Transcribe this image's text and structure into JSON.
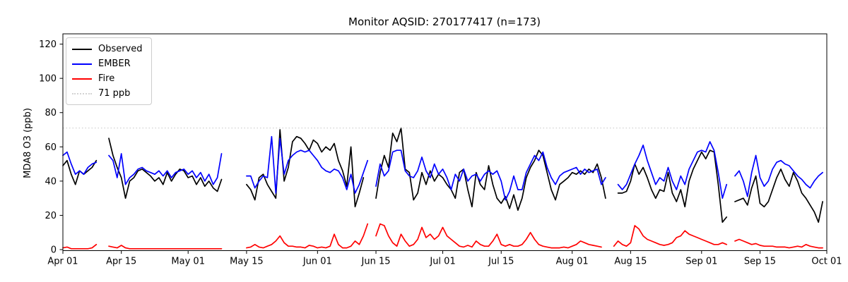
{
  "header": {
    "title": "Monitor AQSID: 270177417 (n=173)"
  },
  "legend": {
    "entries": [
      {
        "label": "Observed",
        "color": "#000000",
        "style": "solid"
      },
      {
        "label": "EMBER",
        "color": "#0000ff",
        "style": "solid"
      },
      {
        "label": "Fire",
        "color": "#ff0000",
        "style": "solid"
      },
      {
        "label": "71 ppb",
        "color": "#d3d3d3",
        "style": "dotted"
      }
    ]
  },
  "chart_data": {
    "type": "line",
    "title": "Monitor AQSID: 270177417 (n=173)",
    "xlabel": "",
    "ylabel": "MDA8 O3 (ppb)",
    "x_unit": "days since Apr 01",
    "x_range_days": 183,
    "ylim": [
      -0.6,
      126
    ],
    "grid": false,
    "legend_position": "upper left",
    "y_ticks": [
      0,
      20,
      40,
      60,
      80,
      100,
      120
    ],
    "x_ticks": [
      {
        "day": 0,
        "label": "Apr 01"
      },
      {
        "day": 14,
        "label": "Apr 15"
      },
      {
        "day": 30,
        "label": "May 01"
      },
      {
        "day": 44,
        "label": "May 15"
      },
      {
        "day": 61,
        "label": "Jun 01"
      },
      {
        "day": 75,
        "label": "Jun 15"
      },
      {
        "day": 91,
        "label": "Jul 01"
      },
      {
        "day": 105,
        "label": "Jul 15"
      },
      {
        "day": 122,
        "label": "Aug 01"
      },
      {
        "day": 136,
        "label": "Aug 15"
      },
      {
        "day": 153,
        "label": "Sep 01"
      },
      {
        "day": 167,
        "label": "Sep 15"
      },
      {
        "day": 183,
        "label": "Oct 01"
      }
    ],
    "threshold": {
      "value": 71,
      "label": "71 ppb",
      "color": "#d3d3d3",
      "style": "dotted"
    },
    "series": [
      {
        "name": "Observed",
        "color": "#000000",
        "style": "solid",
        "values": [
          49,
          52,
          44,
          38,
          46,
          44,
          46,
          48,
          52,
          null,
          null,
          65,
          55,
          48,
          42,
          30,
          40,
          42,
          46,
          47,
          45,
          43,
          40,
          42,
          38,
          45,
          40,
          44,
          47,
          46,
          42,
          43,
          38,
          42,
          37,
          40,
          36,
          34,
          41,
          null,
          null,
          null,
          null,
          null,
          38,
          35,
          29,
          42,
          44,
          38,
          34,
          30,
          70,
          40,
          48,
          63,
          66,
          65,
          62,
          58,
          64,
          62,
          57,
          60,
          58,
          62,
          52,
          46,
          37,
          60,
          25,
          33,
          42,
          null,
          null,
          30,
          45,
          55,
          48,
          68,
          63,
          71,
          47,
          45,
          29,
          33,
          45,
          38,
          46,
          40,
          44,
          42,
          38,
          35,
          30,
          45,
          47,
          35,
          25,
          45,
          38,
          35,
          49,
          38,
          30,
          27,
          31,
          24,
          32,
          23,
          30,
          42,
          48,
          52,
          58,
          55,
          45,
          35,
          29,
          38,
          40,
          42,
          45,
          44,
          46,
          44,
          47,
          45,
          50,
          42,
          30,
          null,
          null,
          33,
          33,
          34,
          40,
          50,
          44,
          48,
          42,
          35,
          30,
          35,
          34,
          45,
          33,
          28,
          35,
          25,
          40,
          47,
          52,
          57,
          53,
          58,
          57,
          38,
          16,
          19,
          null,
          28,
          29,
          30,
          26,
          36,
          43,
          27,
          25,
          28,
          35,
          42,
          47,
          41,
          37,
          45,
          40,
          33,
          30,
          26,
          22,
          16,
          28
        ]
      },
      {
        "name": "EMBER",
        "color": "#0000ff",
        "style": "solid",
        "values": [
          55,
          57,
          50,
          44,
          46,
          44,
          48,
          50,
          51,
          null,
          null,
          55,
          52,
          42,
          56,
          38,
          42,
          44,
          47,
          48,
          46,
          45,
          44,
          46,
          43,
          46,
          42,
          45,
          46,
          47,
          44,
          46,
          42,
          45,
          40,
          44,
          38,
          42,
          56,
          null,
          null,
          null,
          null,
          null,
          43,
          43,
          36,
          40,
          43,
          42,
          66,
          33,
          65,
          44,
          52,
          55,
          57,
          58,
          57,
          58,
          55,
          52,
          48,
          46,
          45,
          47,
          46,
          42,
          35,
          44,
          33,
          38,
          45,
          52,
          null,
          37,
          50,
          43,
          46,
          57,
          58,
          58,
          46,
          43,
          42,
          46,
          54,
          46,
          42,
          50,
          44,
          47,
          42,
          35,
          44,
          40,
          47,
          40,
          43,
          44,
          40,
          44,
          46,
          44,
          46,
          40,
          29,
          34,
          43,
          35,
          35,
          45,
          50,
          55,
          52,
          57,
          48,
          42,
          38,
          43,
          45,
          46,
          47,
          48,
          44,
          47,
          45,
          46,
          47,
          38,
          42,
          null,
          null,
          38,
          35,
          38,
          44,
          50,
          55,
          61,
          52,
          45,
          38,
          42,
          40,
          48,
          40,
          35,
          43,
          38,
          47,
          52,
          57,
          58,
          57,
          63,
          58,
          45,
          30,
          38,
          null,
          43,
          46,
          40,
          31,
          45,
          55,
          42,
          37,
          40,
          47,
          51,
          52,
          50,
          49,
          46,
          43,
          41,
          38,
          36,
          40,
          43,
          45
        ]
      },
      {
        "name": "Fire",
        "color": "#ff0000",
        "style": "solid",
        "values": [
          1,
          1.5,
          0.5,
          0.5,
          0.5,
          0.5,
          0.5,
          1,
          3,
          null,
          null,
          2,
          1.5,
          1,
          2.5,
          1,
          0.5,
          0.5,
          0.5,
          0.5,
          0.5,
          0.5,
          0.5,
          0.5,
          0.5,
          0.5,
          0.5,
          0.5,
          0.5,
          0.5,
          0.5,
          0.5,
          0.5,
          0.5,
          0.5,
          0.5,
          0.5,
          0.5,
          0.5,
          null,
          null,
          null,
          null,
          null,
          1,
          1.5,
          3,
          1.5,
          1,
          2,
          3,
          5,
          8,
          4,
          2,
          2,
          1.5,
          1.5,
          1,
          2.5,
          2,
          1,
          1.5,
          1,
          2,
          9,
          3,
          1,
          1,
          2,
          5,
          3,
          8,
          15,
          null,
          8,
          15,
          14,
          8,
          4,
          2,
          9,
          5,
          2,
          3,
          6,
          13,
          7,
          9,
          6,
          8,
          13,
          8,
          6,
          4,
          2,
          1.5,
          2.5,
          1.5,
          5,
          3,
          2,
          2,
          5,
          9,
          3,
          2,
          3,
          2,
          2,
          3,
          6,
          10,
          6,
          3,
          2,
          1.5,
          1,
          1,
          1,
          1.5,
          1,
          2,
          3,
          5,
          4,
          3,
          2.5,
          2,
          1.5,
          null,
          null,
          2,
          5,
          3,
          2,
          4,
          14,
          12,
          8,
          6,
          5,
          4,
          3,
          2.5,
          3,
          4,
          7,
          8,
          11,
          9,
          8,
          7,
          6,
          5,
          4,
          3,
          3,
          4,
          3,
          null,
          5,
          6,
          5,
          4,
          3,
          3.5,
          2.5,
          2,
          2,
          2,
          1.5,
          1.5,
          1.5,
          1,
          1.5,
          2,
          1.5,
          3,
          2,
          1.5,
          1,
          1
        ]
      }
    ]
  }
}
